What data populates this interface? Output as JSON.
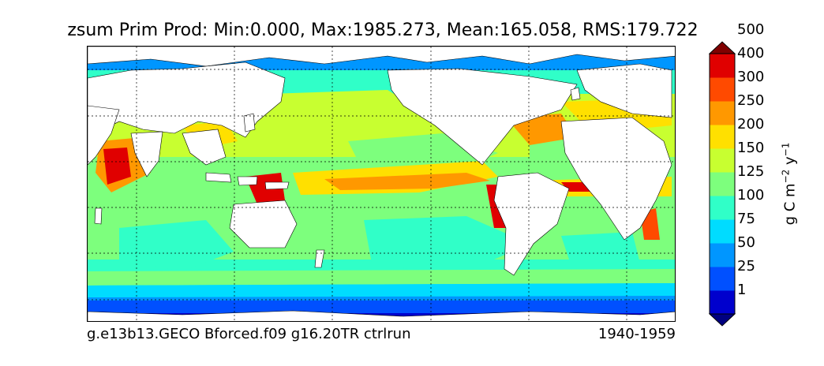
{
  "chart_data": {
    "type": "heatmap",
    "title": "zsum Prim Prod: Min:0.000, Max:1985.273, Mean:165.058, RMS:179.722",
    "left_caption": "g.e13b13.GECO Bforced.f09 g16.20TR ctrlrun",
    "right_caption": "1940-1959",
    "grid": true,
    "colorbar": {
      "label": "g C m",
      "label_exp1": "−2",
      "label_mid": " y",
      "label_exp2": "−1",
      "ticks": [
        "1",
        "25",
        "50",
        "75",
        "100",
        "125",
        "150",
        "200",
        "250",
        "300",
        "400",
        "500"
      ],
      "colors": [
        "#000080",
        "#0000cd",
        "#0050ff",
        "#0096ff",
        "#00dcff",
        "#30ffc8",
        "#7dff7d",
        "#c8ff30",
        "#ffe000",
        "#ff9800",
        "#ff4a00",
        "#e00000",
        "#800000"
      ],
      "extend": "both"
    }
  }
}
